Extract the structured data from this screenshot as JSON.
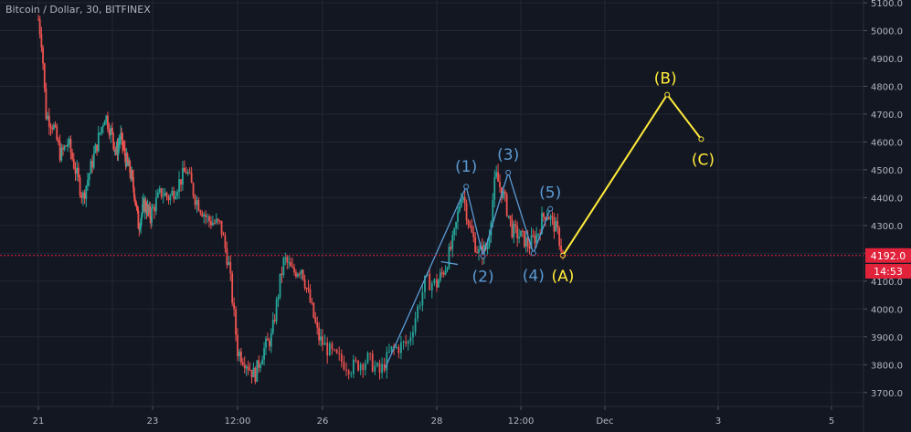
{
  "header": {
    "legend": "Bitcoin / Dollar, 30, BITFINEX"
  },
  "price_tag": {
    "value": "4192.0",
    "color": "#e0223a"
  },
  "timer_tag": {
    "value": "14:53",
    "color": "#e0223a"
  },
  "colors": {
    "background": "#131722",
    "grid": "#232733",
    "up": "#26a69a",
    "down": "#ef5350",
    "impulse": "#5b9bd5",
    "abc": "#ffeb3b"
  },
  "chart_data": {
    "type": "candlestick",
    "title": "Bitcoin / Dollar, 30, BITFINEX",
    "ylim": [
      3650,
      5110
    ],
    "y_ticks": [
      "5100.0",
      "5000.0",
      "4900.0",
      "4800.0",
      "4700.0",
      "4600.0",
      "4500.0",
      "4400.0",
      "4300.0",
      "4200.0",
      "4100.0",
      "4000.0",
      "3900.0",
      "3800.0",
      "3700.0"
    ],
    "x_ticks": [
      "21",
      "23",
      "12:00",
      "26",
      "28",
      "12:00",
      "Dec",
      "3",
      "5"
    ],
    "current_price": 4192.0,
    "price_path": [
      [
        0,
        5040
      ],
      [
        0.05,
        4950
      ],
      [
        0.1,
        4700
      ],
      [
        0.2,
        4660
      ],
      [
        0.3,
        4550
      ],
      [
        0.4,
        4600
      ],
      [
        0.5,
        4500
      ],
      [
        0.6,
        4400
      ],
      [
        0.75,
        4550
      ],
      [
        0.9,
        4700
      ],
      [
        1.0,
        4620
      ],
      [
        1.1,
        4560
      ],
      [
        1.2,
        4620
      ],
      [
        1.35,
        4530
      ],
      [
        1.45,
        4490
      ],
      [
        1.55,
        4420
      ],
      [
        1.65,
        4300
      ],
      [
        1.8,
        4380
      ],
      [
        1.95,
        4330
      ],
      [
        2.1,
        4420
      ],
      [
        2.2,
        4400
      ],
      [
        2.4,
        4500
      ],
      [
        2.5,
        4400
      ],
      [
        2.65,
        4320
      ],
      [
        2.8,
        4300
      ],
      [
        2.9,
        4150
      ],
      [
        3.0,
        3850
      ],
      [
        3.1,
        3810
      ],
      [
        3.2,
        3760
      ],
      [
        3.3,
        3850
      ],
      [
        3.4,
        3900
      ],
      [
        3.5,
        4100
      ],
      [
        3.55,
        4180
      ],
      [
        3.65,
        4130
      ],
      [
        3.75,
        4150
      ],
      [
        3.85,
        4030
      ],
      [
        3.95,
        3900
      ],
      [
        4.1,
        3830
      ],
      [
        4.25,
        3790
      ],
      [
        4.4,
        3820
      ],
      [
        4.5,
        3770
      ],
      [
        4.6,
        3850
      ],
      [
        4.75,
        3880
      ],
      [
        4.9,
        4100
      ],
      [
        5.0,
        4090
      ],
      [
        5.1,
        4150
      ],
      [
        5.2,
        4250
      ],
      [
        5.3,
        4430
      ],
      [
        5.4,
        4280
      ],
      [
        5.5,
        4200
      ],
      [
        5.6,
        4220
      ],
      [
        5.7,
        4480
      ],
      [
        5.8,
        4400
      ],
      [
        5.9,
        4280
      ],
      [
        6.0,
        4260
      ],
      [
        6.1,
        4230
      ],
      [
        6.2,
        4270
      ],
      [
        6.25,
        4320
      ],
      [
        6.3,
        4350
      ],
      [
        6.4,
        4300
      ],
      [
        6.45,
        4260
      ],
      [
        6.5,
        4192
      ]
    ],
    "impulse_waves": [
      {
        "label": "(1)",
        "x": 5.35,
        "y": 4440
      },
      {
        "label": "(2)",
        "x": 5.55,
        "y": 4190
      },
      {
        "label": "(3)",
        "x": 5.85,
        "y": 4490
      },
      {
        "label": "(4)",
        "x": 6.15,
        "y": 4200
      },
      {
        "label": "(5)",
        "x": 6.35,
        "y": 4360
      }
    ],
    "impulse_start": {
      "x": 4.55,
      "y": 3790
    },
    "abc_waves": [
      {
        "label": "(A)",
        "x": 6.5,
        "y": 4192
      },
      {
        "label": "(B)",
        "x": 7.55,
        "y": 4770
      },
      {
        "label": "(C)",
        "x": 7.85,
        "y": 4610
      }
    ],
    "channel_segment": {
      "x1": 5.05,
      "y1": 4170,
      "x2": 5.25,
      "y2": 4160
    }
  }
}
